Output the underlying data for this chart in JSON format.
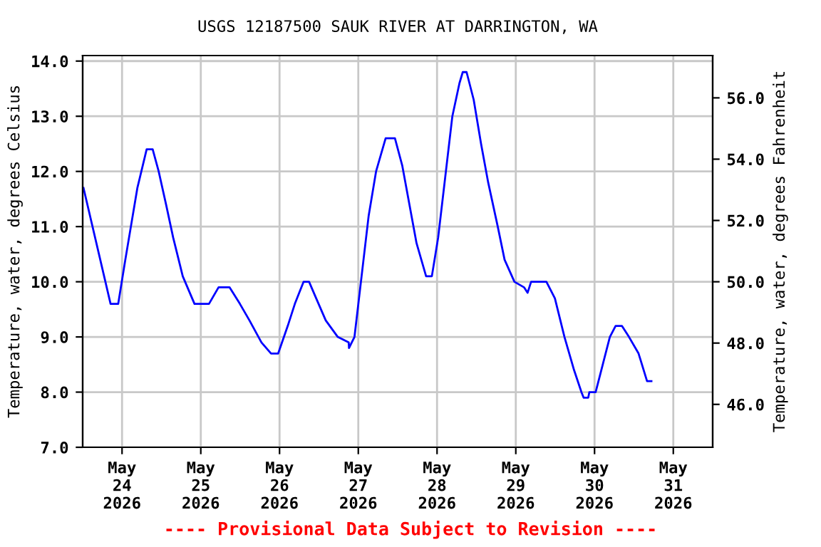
{
  "chart_data": {
    "type": "line",
    "title": "USGS 12187500 SAUK RIVER AT DARRINGTON, WA",
    "ylabel": "Temperature, water, degrees Celsius",
    "y2label": "Temperature, water, degrees Fahrenheit",
    "annotations": [
      "---- Provisional Data Subject to Revision ----"
    ],
    "x": [
      "2026-05-23T12:15",
      "2026-05-23T20:30",
      "2026-05-23T22:50",
      "2026-05-24T01:00",
      "2026-05-24T04:40",
      "2026-05-24T07:30",
      "2026-05-24T09:20",
      "2026-05-24T11:10",
      "2026-05-24T13:25",
      "2026-05-24T15:35",
      "2026-05-24T18:30",
      "2026-05-24T22:05",
      "2026-05-25T02:30",
      "2026-05-25T05:25",
      "2026-05-25T08:45",
      "2026-05-25T11:55",
      "2026-05-25T14:50",
      "2026-05-25T18:30",
      "2026-05-25T21:25",
      "2026-05-25T23:35",
      "2026-05-26T02:30",
      "2026-05-26T04:40",
      "2026-05-26T07:20",
      "2026-05-26T09:00",
      "2026-05-26T11:10",
      "2026-05-26T14:05",
      "2026-05-26T17:45",
      "2026-05-26T21:05",
      "2026-05-26T21:10",
      "2026-05-26T22:50",
      "2026-05-27T01:00",
      "2026-05-27T03:10",
      "2026-05-27T05:25",
      "2026-05-27T08:20",
      "2026-05-27T11:10",
      "2026-05-27T13:25",
      "2026-05-27T15:35",
      "2026-05-27T17:45",
      "2026-05-27T20:40",
      "2026-05-27T22:25",
      "2026-05-28T00:20",
      "2026-05-28T02:30",
      "2026-05-28T04:40",
      "2026-05-28T06:50",
      "2026-05-28T07:50",
      "2026-05-28T09:00",
      "2026-05-28T11:10",
      "2026-05-28T13:25",
      "2026-05-28T15:35",
      "2026-05-28T18:30",
      "2026-05-28T20:35",
      "2026-05-28T23:35",
      "2026-05-29T02:30",
      "2026-05-29T03:35",
      "2026-05-29T04:40",
      "2026-05-29T09:20",
      "2026-05-29T11:55",
      "2026-05-29T14:50",
      "2026-05-29T17:45",
      "2026-05-29T20:00",
      "2026-05-29T20:40",
      "2026-05-29T22:05",
      "2026-05-29T22:25",
      "2026-05-30T00:20",
      "2026-05-30T02:30",
      "2026-05-30T04:40",
      "2026-05-30T06:25",
      "2026-05-30T08:20",
      "2026-05-30T10:30",
      "2026-05-30T13:25",
      "2026-05-30T16:00",
      "2026-05-30T17:20"
    ],
    "series": [
      {
        "color": "#0000ff",
        "values": [
          11.7,
          9.6,
          9.6,
          10.4,
          11.7,
          12.4,
          12.4,
          12.0,
          11.4,
          10.8,
          10.1,
          9.6,
          9.6,
          9.9,
          9.9,
          9.6,
          9.3,
          8.9,
          8.7,
          8.7,
          9.2,
          9.6,
          10.0,
          10.0,
          9.7,
          9.3,
          9.0,
          8.9,
          8.8,
          9.0,
          10.1,
          11.2,
          12.0,
          12.6,
          12.6,
          12.1,
          11.4,
          10.7,
          10.1,
          10.1,
          10.8,
          11.9,
          13.0,
          13.6,
          13.8,
          13.8,
          13.3,
          12.5,
          11.8,
          11.0,
          10.4,
          10.0,
          9.9,
          9.8,
          10.0,
          10.0,
          9.7,
          9.0,
          8.4,
          8.0,
          7.9,
          7.9,
          8.0,
          8.0,
          8.5,
          9.0,
          9.2,
          9.2,
          9.0,
          8.7,
          8.2,
          8.2
        ]
      }
    ],
    "xlim": [
      "2026-05-23T12:00",
      "2026-05-31T12:00"
    ],
    "xticks": [
      {
        "value": "2026-05-24",
        "label": "May\n24\n2026"
      },
      {
        "value": "2026-05-25",
        "label": "May\n25\n2026"
      },
      {
        "value": "2026-05-26",
        "label": "May\n26\n2026"
      },
      {
        "value": "2026-05-27",
        "label": "May\n27\n2026"
      },
      {
        "value": "2026-05-28",
        "label": "May\n28\n2026"
      },
      {
        "value": "2026-05-29",
        "label": "May\n29\n2026"
      },
      {
        "value": "2026-05-30",
        "label": "May\n30\n2026"
      },
      {
        "value": "2026-05-31",
        "label": "May\n31\n2026"
      }
    ],
    "ylim": [
      7.0,
      14.1
    ],
    "yticks": [
      {
        "value": 7,
        "label": "7.0"
      },
      {
        "value": 8,
        "label": "8.0"
      },
      {
        "value": 9,
        "label": "9.0"
      },
      {
        "value": 10,
        "label": "10.0"
      },
      {
        "value": 11,
        "label": "11.0"
      },
      {
        "value": 12,
        "label": "12.0"
      },
      {
        "value": 13,
        "label": "13.0"
      },
      {
        "value": 14,
        "label": "14.0"
      }
    ],
    "y2lim": [
      44.6,
      57.38
    ],
    "y2ticks": [
      {
        "value": 46,
        "label": "46.0"
      },
      {
        "value": 48,
        "label": "48.0"
      },
      {
        "value": 50,
        "label": "50.0"
      },
      {
        "value": 52,
        "label": "52.0"
      },
      {
        "value": 54,
        "label": "54.0"
      },
      {
        "value": 56,
        "label": "56.0"
      }
    ],
    "grid": true,
    "marker": "none",
    "line_style": "solid",
    "legend": false
  }
}
